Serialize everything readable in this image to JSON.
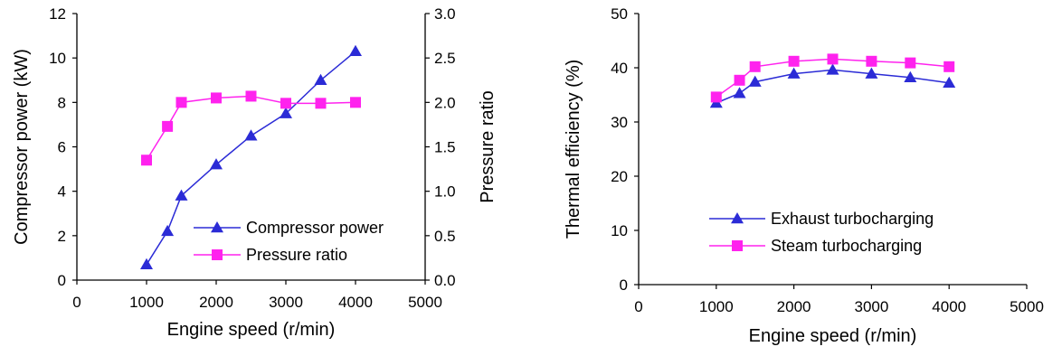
{
  "chart_data": [
    {
      "type": "line",
      "title": "",
      "xlabel": "Engine speed (r/min)",
      "ylabel": "Compressor power (kW)",
      "y2label": "Pressure ratio",
      "xlim": [
        0,
        5000
      ],
      "ylim": [
        0,
        12
      ],
      "y2lim": [
        0,
        3.0
      ],
      "x_ticks": [
        "0",
        "1000",
        "2000",
        "3000",
        "4000",
        "5000"
      ],
      "y_ticks": [
        "0",
        "2",
        "4",
        "6",
        "8",
        "10",
        "12"
      ],
      "y2_ticks": [
        "0.0",
        "0.5",
        "1.0",
        "1.5",
        "2.0",
        "2.5",
        "3.0"
      ],
      "grid": false,
      "legend_position": "bottom-right",
      "series": [
        {
          "name": "Compressor power",
          "axis": "left",
          "color": "#2b2bd6",
          "marker": "triangle",
          "x": [
            1000,
            1300,
            1500,
            2000,
            2500,
            3000,
            3500,
            4000
          ],
          "y": [
            0.7,
            2.2,
            3.8,
            5.2,
            6.5,
            7.5,
            9.0,
            10.3
          ]
        },
        {
          "name": "Pressure ratio",
          "axis": "right",
          "color": "#ff22ee",
          "marker": "square",
          "x": [
            1000,
            1300,
            1500,
            2000,
            2500,
            3000,
            3500,
            4000
          ],
          "y": [
            1.35,
            1.73,
            2.0,
            2.05,
            2.07,
            1.99,
            1.99,
            2.0
          ]
        }
      ]
    },
    {
      "type": "line",
      "title": "",
      "xlabel": "Engine speed (r/min)",
      "ylabel": "Thermal efficiency (%)",
      "xlim": [
        0,
        5000
      ],
      "ylim": [
        0,
        50
      ],
      "x_ticks": [
        "0",
        "1000",
        "2000",
        "3000",
        "4000",
        "5000"
      ],
      "y_ticks": [
        "0",
        "10",
        "20",
        "30",
        "40",
        "50"
      ],
      "grid": false,
      "legend_position": "bottom-center",
      "series": [
        {
          "name": "Exhaust turbocharging",
          "color": "#2b2bd6",
          "marker": "triangle",
          "x": [
            1000,
            1300,
            1500,
            2000,
            2500,
            3000,
            3500,
            4000
          ],
          "y": [
            33.5,
            35.3,
            37.4,
            38.9,
            39.6,
            38.9,
            38.2,
            37.2
          ]
        },
        {
          "name": "Steam turbocharging",
          "color": "#ff22ee",
          "marker": "square",
          "x": [
            1000,
            1300,
            1500,
            2000,
            2500,
            3000,
            3500,
            4000
          ],
          "y": [
            34.6,
            37.7,
            40.2,
            41.2,
            41.6,
            41.2,
            40.9,
            40.2
          ]
        }
      ]
    }
  ]
}
